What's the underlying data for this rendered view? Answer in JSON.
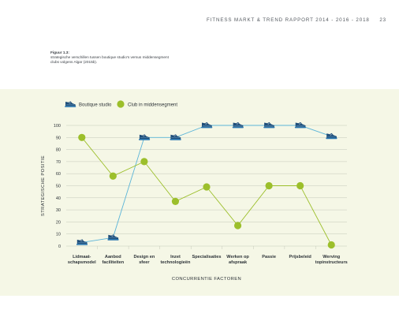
{
  "header": {
    "title": "FITNESS MARKT & TREND RAPPORT 2014 - 2016 - 2018",
    "page_number": "23"
  },
  "caption": {
    "line1": "Figuur 1.3:",
    "line2": "strategische verschillen tussen boutique studio's versus middensegment",
    "line3": "clubs volgens Algar (2015b)."
  },
  "chart_data": {
    "type": "line",
    "title": "",
    "xlabel": "CONCURRENTIE FACTOREN",
    "ylabel": "STRATEGISCHE POSITIE",
    "ylim": [
      0,
      100
    ],
    "yticks": [
      "0",
      "10",
      "20",
      "30",
      "40",
      "50",
      "60",
      "70",
      "80",
      "90",
      "100"
    ],
    "categories": [
      [
        "Lidmaat-",
        "schapsmodel"
      ],
      [
        "Aanbod",
        "faciliteiten"
      ],
      [
        "Design en",
        "sfeer"
      ],
      [
        "Inzet",
        "technologieën"
      ],
      [
        "Specialisaties"
      ],
      [
        "Werken op",
        "afspraak"
      ],
      [
        "Passie"
      ],
      [
        "Prijsbeleid"
      ],
      [
        "Werving",
        "topinstructeurs"
      ]
    ],
    "grid": true,
    "legend_position": "top-left",
    "series": [
      {
        "name": "Boutique studio",
        "marker": "sneaker-icon",
        "color": "#5ab4d8",
        "marker_color": "#1f4e79",
        "values": [
          3,
          7,
          90,
          90,
          100,
          100,
          100,
          100,
          91
        ]
      },
      {
        "name": "Club in middensegment",
        "marker": "circle",
        "color": "#9cbf2b",
        "marker_color": "#9cbf2b",
        "values": [
          90,
          58,
          70,
          37,
          49,
          17,
          50,
          50,
          1
        ]
      }
    ]
  },
  "colors": {
    "panel_background": "#f5f7e6",
    "grid": "#bfc3b4",
    "text": "#2d3338"
  }
}
